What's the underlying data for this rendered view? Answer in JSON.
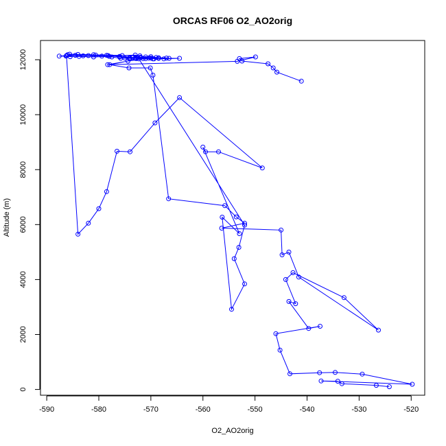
{
  "chart_data": {
    "type": "line",
    "title": "ORCAS RF06 O2_AO2orig",
    "xlabel": "O2_AO2orig",
    "ylabel": "Altitude (m)",
    "xlim": [
      -591.2,
      -517.4
    ],
    "ylim": [
      -210,
      12700
    ],
    "xticks": [
      -590,
      -580,
      -570,
      -560,
      -550,
      -540,
      -530,
      -520
    ],
    "yticks": [
      0,
      2000,
      4000,
      6000,
      8000,
      10000,
      12000
    ],
    "grid": false,
    "legend": "none",
    "series": [
      {
        "color": "#0000ff",
        "marker": "open-circle",
        "x": [
          -524.2,
          -526.7,
          -533.3,
          -534.1,
          -537.3,
          -519.8,
          -529.4,
          -534.6,
          -537.6,
          -543.3,
          -545.2,
          -546.0,
          -537.5,
          -539.7,
          -543.5,
          -542.2,
          -544.1,
          -542.7,
          -532.9,
          -526.3,
          -541.6,
          -543.5,
          -544.8,
          -545.0,
          -556.4,
          -552.0,
          -553.6,
          -555.8,
          -566.6,
          -569.6,
          -570.1,
          -574.2,
          -577.9,
          -572.3,
          -552.0,
          -553.1,
          -554.0,
          -552.0,
          -554.5,
          -556.3,
          -553.0,
          -560.0,
          -559.5,
          -557.0,
          -548.6,
          -564.5,
          -569.2,
          -574.0,
          -576.5,
          -578.5,
          -580.0,
          -582.0,
          -584.0,
          -586.2,
          -587.6,
          -583.8,
          -581.0,
          -578.0,
          -575.5,
          -573.0,
          -571.0,
          -569.0,
          -566.5,
          -564.5,
          -567.5,
          -570.0,
          -572.5,
          -575.0,
          -574.2,
          -571.5,
          -569.6,
          -572.8,
          -574.0,
          -576.0,
          -578.5,
          -581.0,
          -583.0,
          -585.5,
          -586.3,
          -584.0,
          -580.6,
          -578.2,
          -576.0,
          -573.5,
          -572.0,
          -570.0,
          -568.5,
          -567.0,
          -573.0,
          -575.8,
          -577.5,
          -579.4,
          -582.0,
          -584.5,
          -586.0,
          -585.6,
          -572.1,
          -570.4,
          -569.4,
          -568.5,
          -571.0,
          -574.4,
          -578.3,
          -553.4,
          -549.9,
          -553.0,
          -552.5,
          -547.5,
          -546.5,
          -545.8,
          -541.1
        ],
        "y": [
          100,
          150,
          210,
          300,
          310,
          190,
          560,
          620,
          610,
          570,
          1430,
          2030,
          2300,
          2220,
          3200,
          3120,
          4000,
          4250,
          3340,
          2160,
          4090,
          5000,
          4900,
          5800,
          5870,
          6050,
          6280,
          6690,
          6940,
          11440,
          11700,
          11700,
          11820,
          12030,
          5980,
          5170,
          4760,
          3840,
          2920,
          6270,
          5670,
          8820,
          8650,
          8650,
          8060,
          10620,
          9700,
          8650,
          8670,
          7200,
          6580,
          6050,
          5650,
          12150,
          12130,
          12120,
          12100,
          12120,
          12150,
          12170,
          12100,
          12080,
          12050,
          12050,
          12030,
          12060,
          12080,
          12060,
          12050,
          12040,
          12030,
          12040,
          12060,
          12100,
          12160,
          12180,
          12140,
          12110,
          12130,
          12190,
          12170,
          12150,
          12120,
          12080,
          12090,
          12110,
          12070,
          12060,
          12050,
          12050,
          12100,
          12130,
          12150,
          12160,
          12180,
          12200,
          12140,
          12060,
          12030,
          12050,
          12040,
          11950,
          11820,
          11940,
          12100,
          12040,
          11950,
          11850,
          11700,
          11550,
          11220
        ]
      }
    ]
  }
}
